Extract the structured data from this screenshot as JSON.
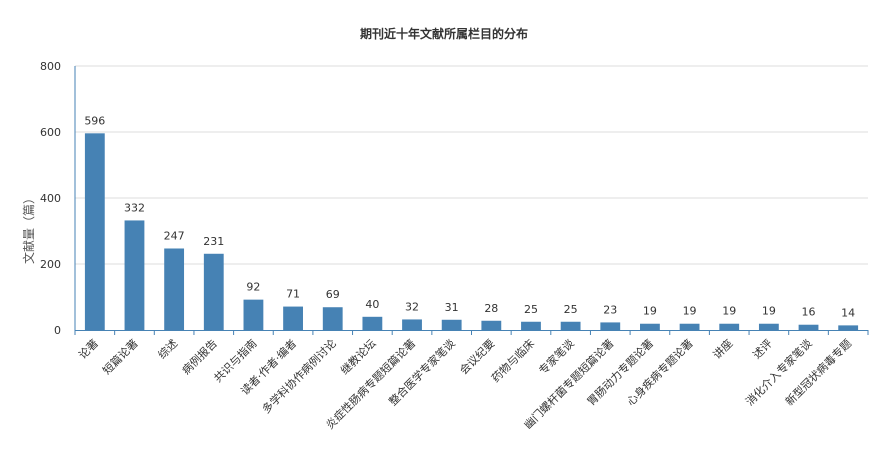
{
  "chart_data": {
    "type": "bar",
    "title": "期刊近十年文献所属栏目的分布",
    "xlabel": "",
    "ylabel": "文献量（篇）",
    "ylim": [
      0,
      800
    ],
    "yticks": [
      0,
      200,
      400,
      600,
      800
    ],
    "grid": true,
    "legend": "none",
    "categories": [
      "论著",
      "短篇论著",
      "综述",
      "病例报告",
      "共识与指南",
      "读者·作者·编者",
      "多学科协作病例讨论",
      "继教论坛",
      "炎症性肠病专题短篇论著",
      "整合医学专家笔谈",
      "会议纪要",
      "药物与临床",
      "专家笔谈",
      "幽门螺杆菌专题短篇论著",
      "胃肠动力专题论著",
      "心身疾病专题论著",
      "讲座",
      "述评",
      "消化介入专家笔谈",
      "新型冠状病毒专题"
    ],
    "values": [
      596,
      332,
      247,
      231,
      92,
      71,
      69,
      40,
      32,
      31,
      28,
      25,
      25,
      23,
      19,
      19,
      19,
      19,
      16,
      14
    ],
    "colors": {
      "bar": "#4682b4",
      "axis": "#4682b4",
      "grid": "#dddddd"
    }
  }
}
